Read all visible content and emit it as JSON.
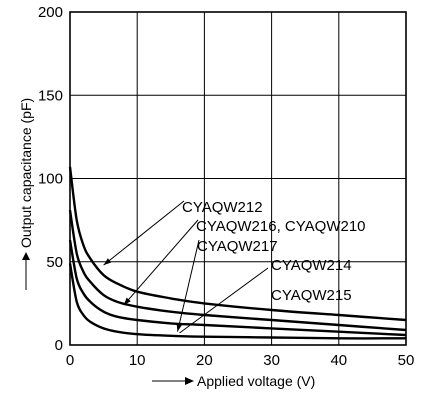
{
  "chart_data": {
    "type": "line",
    "title": "",
    "xlabel": "Applied voltage (V)",
    "ylabel": "Output capacitance (pF)",
    "xlim": [
      0,
      50
    ],
    "ylim": [
      0,
      200
    ],
    "xticks": [
      0,
      10,
      20,
      30,
      40,
      50
    ],
    "yticks": [
      0,
      50,
      100,
      150,
      200
    ],
    "x_tick_labels": [
      "0",
      "10",
      "20",
      "30",
      "40",
      "50"
    ],
    "y_tick_labels": [
      "0",
      "50",
      "100",
      "150",
      "200"
    ],
    "grid": true,
    "legend": "none",
    "series": [
      {
        "name": "CYAQW212",
        "x": [
          0,
          1,
          2,
          3,
          5,
          7,
          10,
          15,
          20,
          30,
          40,
          50
        ],
        "y": [
          107,
          75,
          60,
          52,
          42,
          37,
          32,
          28,
          25,
          21,
          18,
          15
        ]
      },
      {
        "name": "CYAQW216, CYAQW210",
        "x": [
          0,
          1,
          2,
          3,
          5,
          7,
          10,
          15,
          20,
          30,
          40,
          50
        ],
        "y": [
          81,
          55,
          44,
          38,
          30,
          26,
          23,
          20,
          18,
          15,
          12,
          9
        ]
      },
      {
        "name": "CYAQW217",
        "x": [
          0,
          1,
          2,
          3,
          5,
          7,
          10,
          15,
          20,
          30,
          40,
          50
        ],
        "y": [
          63,
          40,
          31,
          26,
          20,
          17,
          15,
          13,
          12,
          10,
          8,
          6
        ]
      },
      {
        "name": "CYAQW214",
        "x": [
          0,
          1,
          2,
          3,
          5,
          7,
          10,
          15,
          20,
          30,
          40,
          50
        ],
        "y": [
          49,
          26,
          18,
          14,
          10,
          8,
          6.5,
          5.5,
          5,
          4.5,
          4,
          4
        ]
      }
    ],
    "labels": [
      {
        "text": "CYAQW212",
        "points_to": [
          5,
          48
        ]
      },
      {
        "text": "CYAQW216, CYAQW210",
        "points_to": [
          8,
          24
        ]
      },
      {
        "text": "CYAQW217",
        "points_to": [
          16,
          8
        ]
      },
      {
        "text": "CYAQW214",
        "points_to": null
      },
      {
        "text": "CYAQW215",
        "points_to": null
      }
    ]
  }
}
